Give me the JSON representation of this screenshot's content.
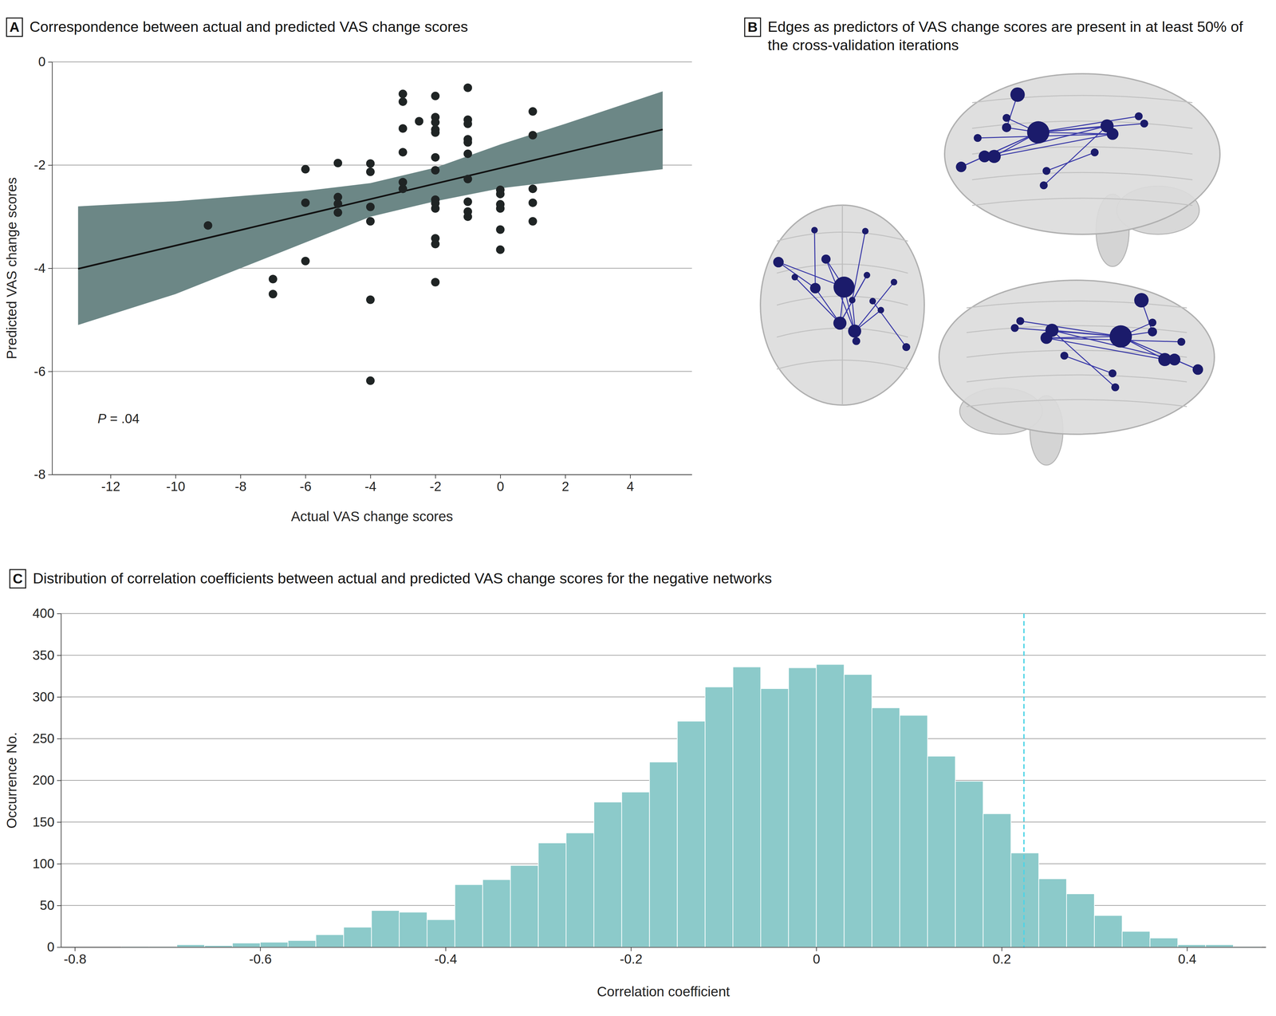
{
  "chart_data": [
    {
      "type": "scatter",
      "panel": "A",
      "title": "Correspondence between actual and predicted VAS change scores",
      "x_label": "Actual VAS change scores",
      "y_label": "Predicted VAS change scores",
      "x": [
        -9,
        -7,
        -7,
        -6,
        -6,
        -6,
        -5,
        -5,
        -5,
        -5,
        -4,
        -4,
        -4,
        -4,
        -4,
        -4,
        -3,
        -3,
        -3,
        -3,
        -3,
        -3,
        -2.5,
        -2,
        -2,
        -2,
        -2,
        -2,
        -2,
        -2,
        -2,
        -2,
        -2,
        -2,
        -2,
        -2,
        -1,
        -1,
        -1,
        -1,
        -1,
        -1,
        -1,
        -1,
        -1,
        -1,
        0,
        0,
        0,
        0,
        0,
        0,
        1,
        1,
        1,
        1,
        1
      ],
      "values": [
        -3.17,
        -4.21,
        -4.5,
        -2.08,
        -2.73,
        -3.86,
        -1.96,
        -2.62,
        -2.75,
        -2.92,
        -1.97,
        -2.13,
        -2.81,
        -3.09,
        -4.61,
        -6.18,
        -0.62,
        -0.77,
        -1.29,
        -1.75,
        -2.33,
        -2.46,
        -1.15,
        -0.66,
        -1.07,
        -1.17,
        -1.31,
        -1.37,
        -1.85,
        -2.1,
        -2.67,
        -2.74,
        -2.84,
        -3.42,
        -3.53,
        -4.27,
        -0.5,
        -1.12,
        -1.2,
        -1.5,
        -1.56,
        -1.78,
        -2.27,
        -2.71,
        -2.9,
        -3,
        -2.48,
        -2.56,
        -2.76,
        -2.84,
        -3.25,
        -3.64,
        -0.96,
        -1.42,
        -2.46,
        -2.73,
        -3.09
      ],
      "color": "#1f2424",
      "fit": {
        "x": [
          -13,
          5
        ],
        "values": [
          -4.01,
          -1.31
        ],
        "color": "#111111"
      },
      "band": {
        "x": [
          -13,
          -10,
          -8,
          -6,
          -4,
          -2,
          0,
          2,
          5
        ],
        "lower": [
          -5.1,
          -4.5,
          -4.0,
          -3.5,
          -3.0,
          -2.7,
          -2.45,
          -2.3,
          -2.08
        ],
        "upper": [
          -2.8,
          -2.7,
          -2.6,
          -2.5,
          -2.35,
          -2.05,
          -1.6,
          -1.2,
          -0.57
        ],
        "color": "#6c8786"
      },
      "annotations": [
        {
          "text": "P = .04",
          "x": -12.4,
          "y": -7
        }
      ],
      "xlim": [
        -13.8,
        5.9
      ],
      "ylim": [
        -8,
        0
      ],
      "xticks": [
        -12,
        -10,
        -8,
        -6,
        -4,
        -2,
        0,
        2,
        4
      ],
      "yticks": [
        -8,
        -6,
        -4,
        -2,
        0
      ],
      "grid": "y"
    },
    {
      "type": "diagram",
      "panel": "B",
      "title": "Edges as predictors of VAS change scores are present in at least 50% of the cross-validation iterations"
    },
    {
      "type": "histogram",
      "panel": "C",
      "title": "Distribution of correlation coefficients between actual and predicted VAS change scores for the negative networks",
      "x_label": "Correlation coefficient",
      "y_label": "Occurrence No.",
      "bins": [
        -0.75,
        -0.72,
        -0.69,
        -0.66,
        -0.63,
        -0.6,
        -0.57,
        -0.54,
        -0.51,
        -0.48,
        -0.45,
        -0.42,
        -0.39,
        -0.36,
        -0.33,
        -0.3,
        -0.27,
        -0.24,
        -0.21,
        -0.18,
        -0.15,
        -0.12,
        -0.09,
        -0.06,
        -0.03,
        0,
        0.03,
        0.06,
        0.09,
        0.12,
        0.15,
        0.18,
        0.21,
        0.24,
        0.27,
        0.3,
        0.33,
        0.36,
        0.39,
        0.42,
        0.45,
        0.48
      ],
      "values": [
        1,
        1,
        3,
        2,
        5,
        6,
        8,
        15,
        24,
        44,
        42,
        33,
        75,
        81,
        98,
        125,
        137,
        174,
        186,
        222,
        271,
        312,
        336,
        310,
        335,
        339,
        327,
        287,
        278,
        229,
        199,
        160,
        113,
        82,
        64,
        38,
        19,
        11,
        3,
        3,
        1
      ],
      "color": "#8ccaca",
      "vlines": [
        {
          "value": 0.224,
          "color": "#4dd4e6",
          "line_style": "dashed"
        }
      ],
      "xlim": [
        -0.815,
        0.485
      ],
      "ylim": [
        0,
        400
      ],
      "xticks": [
        -0.8,
        -0.6,
        -0.4,
        -0.2,
        0,
        0.2,
        0.4
      ],
      "yticks": [
        0,
        50,
        100,
        150,
        200,
        250,
        300,
        350,
        400
      ],
      "grid": "y"
    }
  ]
}
